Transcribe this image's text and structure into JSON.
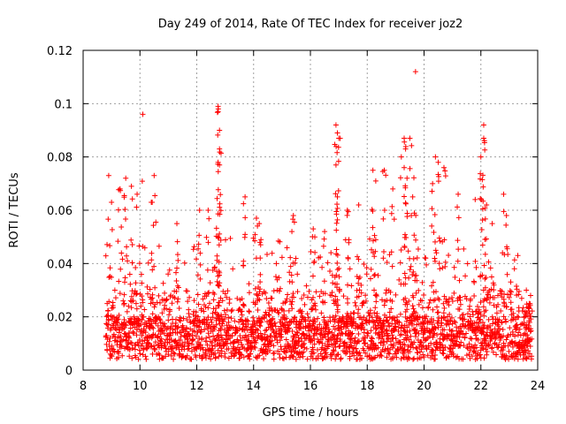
{
  "chart_data": {
    "type": "scatter",
    "title": "Day 249 of 2014, Rate Of TEC Index for receiver joz2",
    "xlabel": "GPS time / hours",
    "ylabel": "ROTI / TECUs",
    "xlim": [
      8,
      24
    ],
    "ylim": [
      0,
      0.12
    ],
    "xticks": [
      8,
      10,
      12,
      14,
      16,
      18,
      20,
      22,
      24
    ],
    "yticks": [
      0,
      0.02,
      0.04,
      0.06,
      0.08,
      0.1,
      0.12
    ],
    "xtick_labels": [
      "8",
      "10",
      "12",
      "14",
      "16",
      "18",
      "20",
      "22",
      "24"
    ],
    "ytick_labels": [
      "0",
      "0.02",
      "0.04",
      "0.06",
      "0.08",
      "0.1",
      "0.12"
    ],
    "grid": true,
    "marker": "+",
    "color": "#ff0000",
    "data_x_range": [
      8.8,
      23.8
    ],
    "series": [
      {
        "name": "ROTI",
        "note": "dense scatter of ROTI samples between 8.8 h and 23.8 h; bulk 0.005-0.03 TECU/min",
        "points": [
          [
            8.9,
            0.073
          ],
          [
            9.0,
            0.063
          ],
          [
            9.3,
            0.068
          ],
          [
            9.5,
            0.072
          ],
          [
            9.7,
            0.069
          ],
          [
            9.9,
            0.066
          ],
          [
            10.1,
            0.096
          ],
          [
            10.5,
            0.073
          ],
          [
            10.4,
            0.063
          ],
          [
            11.3,
            0.055
          ],
          [
            12.1,
            0.06
          ],
          [
            12.4,
            0.06
          ],
          [
            12.75,
            0.099
          ],
          [
            12.75,
            0.097
          ],
          [
            12.8,
            0.09
          ],
          [
            12.8,
            0.083
          ],
          [
            12.75,
            0.078
          ],
          [
            12.8,
            0.077
          ],
          [
            13.7,
            0.065
          ],
          [
            14.1,
            0.057
          ],
          [
            14.2,
            0.055
          ],
          [
            15.4,
            0.058
          ],
          [
            16.1,
            0.053
          ],
          [
            16.5,
            0.052
          ],
          [
            16.9,
            0.092
          ],
          [
            16.95,
            0.089
          ],
          [
            17.0,
            0.087
          ],
          [
            16.9,
            0.077
          ],
          [
            16.95,
            0.065
          ],
          [
            17.3,
            0.06
          ],
          [
            17.7,
            0.062
          ],
          [
            18.2,
            0.075
          ],
          [
            18.3,
            0.071
          ],
          [
            18.6,
            0.075
          ],
          [
            18.9,
            0.068
          ],
          [
            19.2,
            0.08
          ],
          [
            19.3,
            0.087
          ],
          [
            19.35,
            0.083
          ],
          [
            19.5,
            0.087
          ],
          [
            19.3,
            0.076
          ],
          [
            19.4,
            0.072
          ],
          [
            19.6,
            0.065
          ],
          [
            19.7,
            0.112
          ],
          [
            20.4,
            0.08
          ],
          [
            20.5,
            0.078
          ],
          [
            20.7,
            0.076
          ],
          [
            20.3,
            0.07
          ],
          [
            21.2,
            0.066
          ],
          [
            21.8,
            0.064
          ],
          [
            22.1,
            0.092
          ],
          [
            22.1,
            0.087
          ],
          [
            22.0,
            0.08
          ],
          [
            22.2,
            0.062
          ],
          [
            22.8,
            0.066
          ],
          [
            22.9,
            0.058
          ],
          [
            22.4,
            0.055
          ],
          [
            23.3,
            0.043
          ],
          [
            23.6,
            0.03
          ],
          [
            23.7,
            0.025
          ],
          [
            23.75,
            0.028
          ]
        ]
      }
    ]
  }
}
